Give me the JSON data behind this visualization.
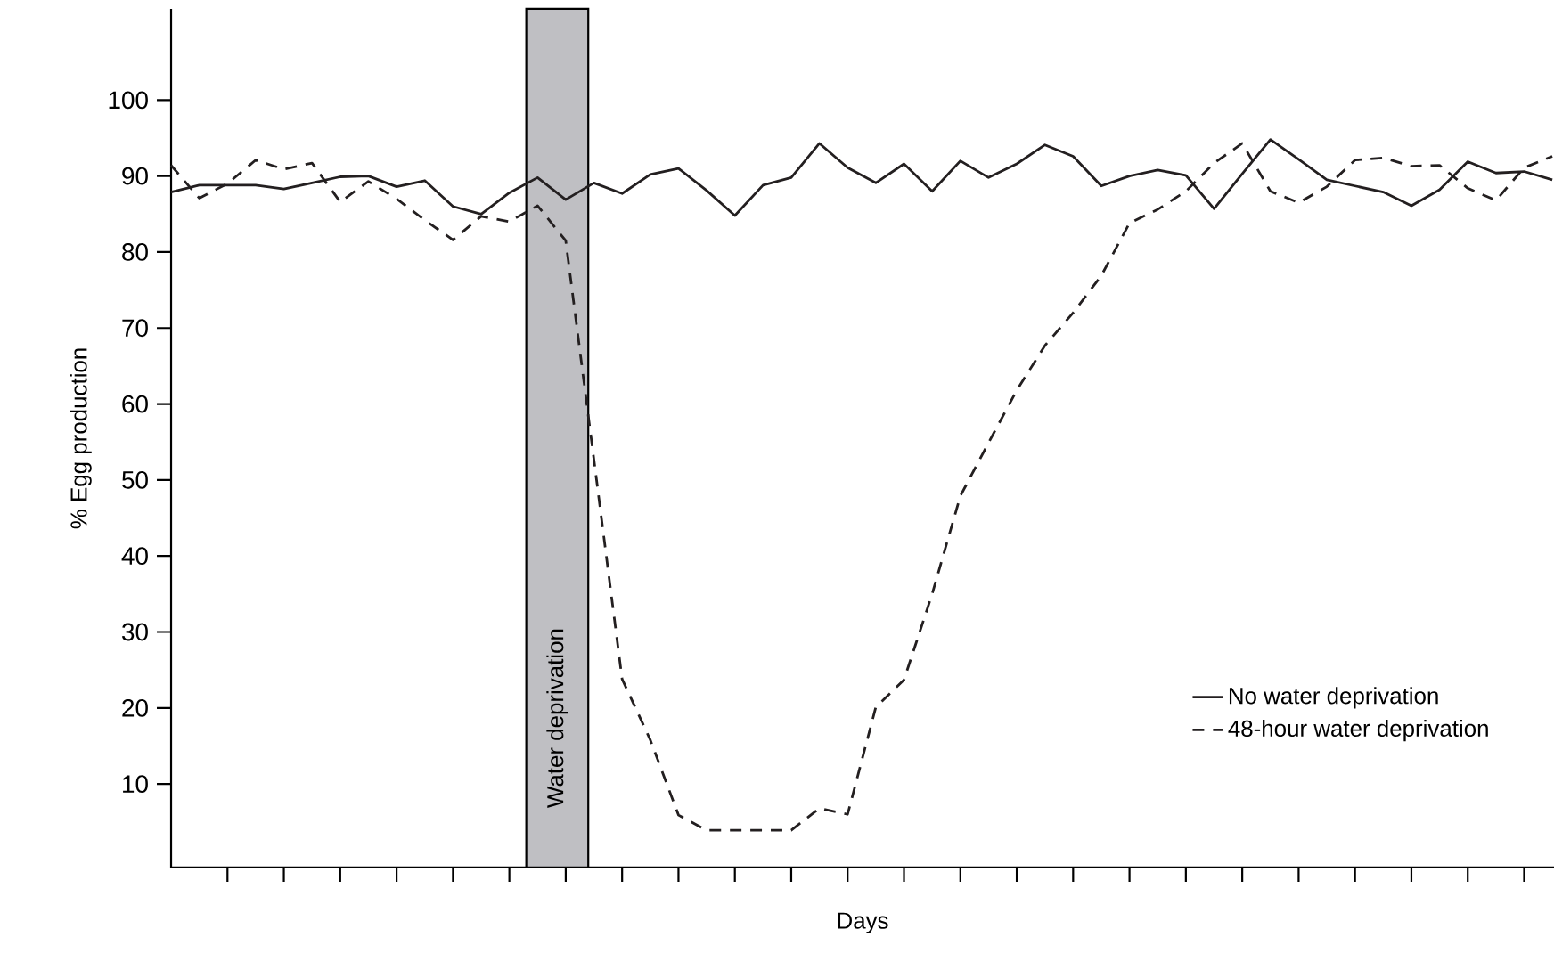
{
  "chart_data": {
    "type": "line",
    "xlabel": "Days",
    "ylabel": "% Egg production",
    "categories": [
      null,
      null,
      null,
      null,
      null,
      null,
      null,
      null,
      null,
      null,
      null,
      null,
      null,
      null,
      null,
      null,
      null,
      null,
      null,
      null,
      null,
      null,
      null,
      null,
      null,
      null,
      null,
      null,
      null,
      null,
      null,
      null,
      null,
      null,
      null,
      null,
      null,
      null,
      null,
      null,
      null,
      null,
      null,
      null,
      null,
      null,
      null,
      null,
      null,
      null
    ],
    "ylim": [
      -1,
      112
    ],
    "yticks": [
      10,
      20,
      30,
      40,
      50,
      60,
      70,
      80,
      90,
      100
    ],
    "tick_labels": "y",
    "grid": false,
    "legend": "bottom right",
    "marker": "none",
    "series": [
      {
        "name": "No water deprivation",
        "color": "#231f20",
        "line_style": "solid",
        "values": [
          87.9,
          88.8,
          88.8,
          88.8,
          88.3,
          89.1,
          89.9,
          90.0,
          88.6,
          89.4,
          86.0,
          85.0,
          87.8,
          89.8,
          86.9,
          89.1,
          87.7,
          90.2,
          91.0,
          88.1,
          84.8,
          88.8,
          89.8,
          94.3,
          91.1,
          89.1,
          91.6,
          88.0,
          92.0,
          89.8,
          91.6,
          94.1,
          92.6,
          88.7,
          90.0,
          90.8,
          90.1,
          85.7,
          90.3,
          94.8,
          92.2,
          89.5,
          88.7,
          87.9,
          86.1,
          88.2,
          91.9,
          90.4,
          90.6,
          89.5
        ]
      },
      {
        "name": "48-hour water deprivation",
        "color": "#231f20",
        "line_style": "dashed",
        "values": [
          91.4,
          87.1,
          89.0,
          92.1,
          90.9,
          91.7,
          86.6,
          89.3,
          87.0,
          84.2,
          81.6,
          84.7,
          84.0,
          86.1,
          81.5,
          52.7,
          23.8,
          15.8,
          5.9,
          3.9,
          3.9,
          3.9,
          3.9,
          6.8,
          6.0,
          20.1,
          23.7,
          35.0,
          47.9,
          54.9,
          61.8,
          67.7,
          72.0,
          76.9,
          83.8,
          85.6,
          88.0,
          91.7,
          94.3,
          88.0,
          86.5,
          88.6,
          92.1,
          92.4,
          91.3,
          91.4,
          88.4,
          86.8,
          91.1,
          92.6
        ]
      }
    ],
    "annotations": [
      "Water deprivation"
    ]
  }
}
